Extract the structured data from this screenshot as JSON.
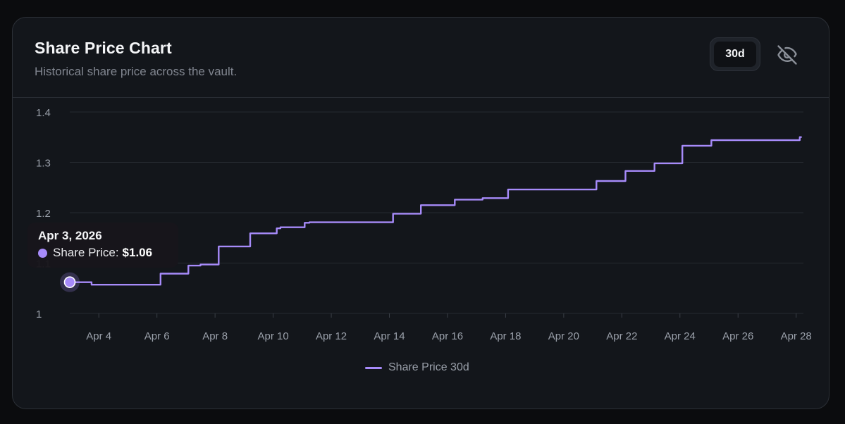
{
  "card": {
    "title": "Share Price Chart",
    "subtitle": "Historical share price across the vault."
  },
  "controls": {
    "range_label": "30d",
    "hide_icon": "eye-off-icon"
  },
  "tooltip": {
    "date": "Apr 3, 2026",
    "series_label": "Share Price:",
    "value": "$1.06"
  },
  "colors": {
    "line": "#a78bfa",
    "background": "#13161b",
    "grid": "#262a31"
  },
  "chart_data": {
    "type": "line",
    "title": "",
    "xlabel": "",
    "ylabel": "",
    "ylim": [
      1.0,
      1.4
    ],
    "yticks": [
      1,
      1.1,
      1.2,
      1.3,
      1.4
    ],
    "ytick_labels": [
      "1",
      "1.1",
      "1.2",
      "1.3",
      "1.4"
    ],
    "xlim": [
      "2026-04-03",
      "2026-04-28"
    ],
    "xticks": [
      "2026-04-04",
      "2026-04-06",
      "2026-04-08",
      "2026-04-10",
      "2026-04-12",
      "2026-04-14",
      "2026-04-16",
      "2026-04-18",
      "2026-04-20",
      "2026-04-22",
      "2026-04-24",
      "2026-04-26",
      "2026-04-28"
    ],
    "xtick_labels": [
      "Apr 4",
      "Apr 6",
      "Apr 8",
      "Apr 10",
      "Apr 12",
      "Apr 14",
      "Apr 16",
      "Apr 18",
      "Apr 20",
      "Apr 22",
      "Apr 24",
      "Apr 26",
      "Apr 28"
    ],
    "grid": "horizontal",
    "legend_position": "bottom-center",
    "step": true,
    "series": [
      {
        "name": "Share Price 30d",
        "x": [
          "2026-04-03",
          "2026-04-03 18:00",
          "2026-04-06 03:00",
          "2026-04-07 02:00",
          "2026-04-07 12:00",
          "2026-04-08 03:00",
          "2026-04-09 05:00",
          "2026-04-10 03:00",
          "2026-04-10 06:00",
          "2026-04-11 02:00",
          "2026-04-11 06:00",
          "2026-04-14 03:00",
          "2026-04-15 02:00",
          "2026-04-16 06:00",
          "2026-04-17 05:00",
          "2026-04-18 02:00",
          "2026-04-21 03:00",
          "2026-04-22 03:00",
          "2026-04-23 03:00",
          "2026-04-24 02:00",
          "2026-04-25 02:00",
          "2026-04-27 18:00",
          "2026-04-28 03:00"
        ],
        "values": [
          1.062,
          1.057,
          1.079,
          1.095,
          1.097,
          1.133,
          1.159,
          1.169,
          1.171,
          1.18,
          1.181,
          1.198,
          1.215,
          1.226,
          1.229,
          1.246,
          1.263,
          1.283,
          1.298,
          1.333,
          1.344,
          1.344,
          1.35
        ]
      }
    ],
    "highlight": {
      "x": "2026-04-03",
      "value": 1.062
    }
  }
}
